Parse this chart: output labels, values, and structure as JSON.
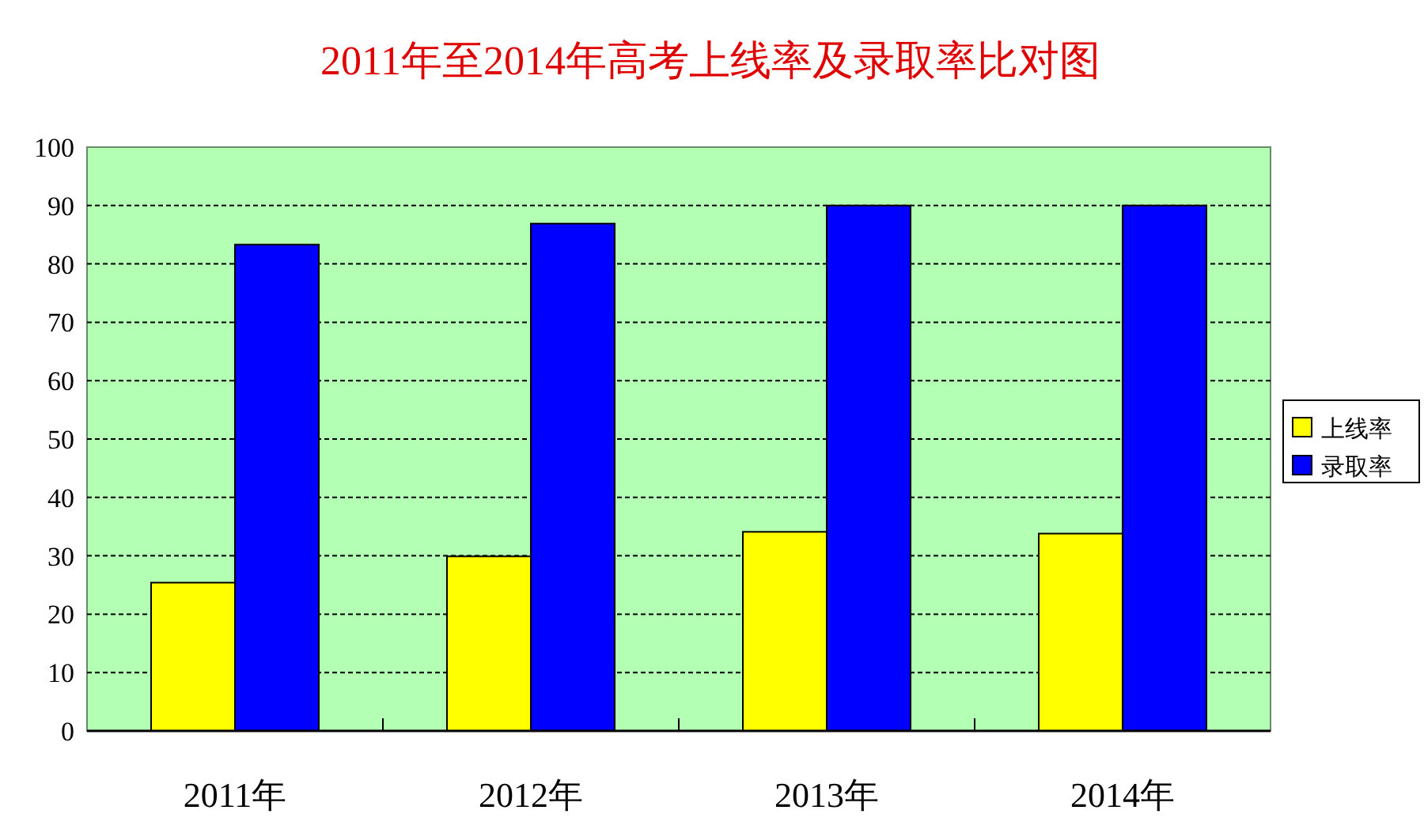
{
  "chart_data": {
    "type": "bar",
    "title": "2011年至2014年高考上线率及录取率比对图",
    "categories": [
      "2011年",
      "2012年",
      "2013年",
      "2014年"
    ],
    "series": [
      {
        "name": "上线率",
        "color": "#ffff00",
        "values": [
          25.4,
          29.9,
          34.1,
          33.8
        ]
      },
      {
        "name": "录取率",
        "color": "#0000ff",
        "values": [
          83.3,
          86.9,
          90,
          90
        ]
      }
    ],
    "ylim": [
      0,
      100
    ],
    "yticks": [
      0,
      10,
      20,
      30,
      40,
      50,
      60,
      70,
      80,
      90,
      100
    ],
    "grid": "y",
    "legend": "right"
  }
}
